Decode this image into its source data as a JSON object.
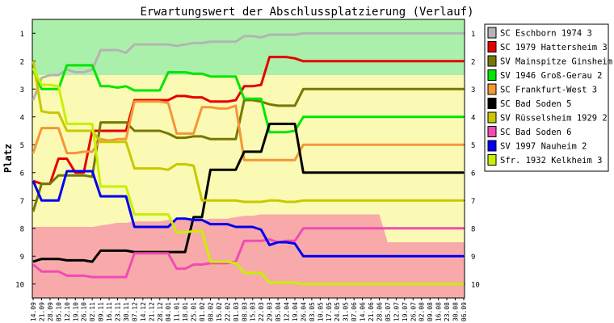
{
  "chart_data": {
    "type": "line",
    "title": "Erwartungswert der Abschlussplatzierung (Verlauf)",
    "ylabel": "Platz",
    "xlabel": "",
    "ylim": [
      0.5,
      10.5
    ],
    "y_inverted": true,
    "y_ticks": [
      1,
      2,
      3,
      4,
      5,
      6,
      7,
      8,
      9,
      10
    ],
    "grid": false,
    "legend_position": "right",
    "categories": [
      "14.09",
      "21.09",
      "28.09",
      "05.10",
      "12.10",
      "19.10",
      "26.10",
      "02.11",
      "09.11",
      "16.11",
      "23.11",
      "30.11",
      "07.12",
      "14.12",
      "21.12",
      "28.12",
      "04.01",
      "11.01",
      "18.01",
      "25.01",
      "01.02",
      "08.02",
      "15.02",
      "22.02",
      "01.03",
      "08.03",
      "15.03",
      "22.03",
      "29.03",
      "05.04",
      "12.04",
      "19.04",
      "26.04",
      "03.05",
      "10.05",
      "17.05",
      "24.05",
      "31.05",
      "07.06",
      "14.06",
      "21.06",
      "28.06",
      "05.07",
      "12.07",
      "19.07",
      "26.07",
      "02.08",
      "09.08",
      "16.08",
      "23.08",
      "30.08",
      "06.09"
    ],
    "zones": [
      {
        "name": "aufstieg",
        "color": "#aaf0aa",
        "top": [
          0.5,
          0.5,
          0.5,
          0.5,
          0.5,
          0.5,
          0.5,
          0.5,
          0.5,
          0.5,
          0.5,
          0.5,
          0.5,
          0.5,
          0.5,
          0.5,
          0.5,
          0.5,
          0.5,
          0.5,
          0.5,
          0.5,
          0.5,
          0.5,
          0.5,
          0.5,
          0.5,
          0.5,
          0.5,
          0.5,
          0.5,
          0.5,
          0.5,
          0.5,
          0.5,
          0.5,
          0.5,
          0.5,
          0.5,
          0.5,
          0.5,
          0.5,
          0.5,
          0.5,
          0.5,
          0.5,
          0.5,
          0.5,
          0.5,
          0.5,
          0.5,
          0.5
        ],
        "bottom": [
          2.5,
          2.5,
          2.5,
          2.5,
          2.5,
          2.5,
          2.5,
          2.5,
          2.5,
          2.5,
          2.5,
          2.5,
          2.5,
          2.5,
          2.5,
          2.5,
          2.5,
          2.5,
          2.5,
          2.5,
          2.5,
          2.5,
          2.5,
          2.5,
          2.5,
          2.5,
          2.5,
          2.5,
          2.5,
          2.5,
          2.5,
          2.5,
          2.5,
          2.5,
          2.5,
          2.5,
          2.5,
          2.5,
          2.5,
          2.5,
          2.5,
          2.5,
          2.5,
          2.5,
          2.5,
          2.5,
          2.5,
          2.5,
          2.5,
          2.5,
          2.5,
          2.5
        ]
      },
      {
        "name": "mitte",
        "color": "#fafab4",
        "top": [
          2.5,
          2.5,
          2.5,
          2.5,
          2.5,
          2.5,
          2.5,
          2.5,
          2.5,
          2.5,
          2.5,
          2.5,
          2.5,
          2.5,
          2.5,
          2.5,
          2.5,
          2.5,
          2.5,
          2.5,
          2.5,
          2.5,
          2.5,
          2.5,
          2.5,
          2.5,
          2.5,
          2.5,
          2.5,
          2.5,
          2.5,
          2.5,
          2.5,
          2.5,
          2.5,
          2.5,
          2.5,
          2.5,
          2.5,
          2.5,
          2.5,
          2.5,
          2.5,
          2.5,
          2.5,
          2.5,
          2.5,
          2.5,
          2.5,
          2.5,
          2.5,
          2.5
        ],
        "bottom": [
          7.95,
          7.95,
          7.95,
          7.95,
          7.95,
          7.95,
          7.95,
          7.95,
          7.9,
          7.85,
          7.8,
          7.8,
          7.75,
          7.75,
          7.75,
          7.75,
          7.7,
          7.7,
          7.7,
          7.7,
          7.7,
          7.65,
          7.65,
          7.65,
          7.6,
          7.55,
          7.55,
          7.5,
          7.5,
          7.5,
          7.5,
          7.5,
          7.5,
          7.5,
          7.5,
          7.5,
          7.5,
          7.5,
          7.5,
          7.5,
          7.5,
          7.5,
          8.5,
          8.5,
          8.5,
          8.5,
          8.5,
          8.5,
          8.5,
          8.5,
          8.5,
          8.5
        ]
      },
      {
        "name": "abstieg",
        "color": "#f8aaaa",
        "top": [
          7.95,
          7.95,
          7.95,
          7.95,
          7.95,
          7.95,
          7.95,
          7.95,
          7.9,
          7.85,
          7.8,
          7.8,
          7.75,
          7.75,
          7.75,
          7.75,
          7.7,
          7.7,
          7.7,
          7.7,
          7.7,
          7.65,
          7.65,
          7.65,
          7.6,
          7.55,
          7.55,
          7.5,
          7.5,
          7.5,
          7.5,
          7.5,
          7.5,
          7.5,
          7.5,
          7.5,
          7.5,
          7.5,
          7.5,
          7.5,
          7.5,
          7.5,
          8.5,
          8.5,
          8.5,
          8.5,
          8.5,
          8.5,
          8.5,
          8.5,
          8.5,
          8.5
        ],
        "bottom": [
          10.5,
          10.5,
          10.5,
          10.5,
          10.5,
          10.5,
          10.5,
          10.5,
          10.5,
          10.5,
          10.5,
          10.5,
          10.5,
          10.5,
          10.5,
          10.5,
          10.5,
          10.5,
          10.5,
          10.5,
          10.5,
          10.5,
          10.5,
          10.5,
          10.5,
          10.5,
          10.5,
          10.5,
          10.5,
          10.5,
          10.5,
          10.5,
          10.5,
          10.5,
          10.5,
          10.5,
          10.5,
          10.5,
          10.5,
          10.5,
          10.5,
          10.5,
          10.5,
          10.5,
          10.5,
          10.5,
          10.5,
          10.5,
          10.5,
          10.5,
          10.5,
          10.5
        ]
      }
    ],
    "series": [
      {
        "name": "SC Eschborn 1974 3",
        "color": "#b4b4b4",
        "values": [
          3.4,
          2.6,
          2.5,
          2.5,
          2.3,
          2.4,
          2.4,
          2.3,
          1.6,
          1.6,
          1.6,
          1.7,
          1.4,
          1.4,
          1.4,
          1.4,
          1.4,
          1.45,
          1.4,
          1.35,
          1.35,
          1.3,
          1.3,
          1.3,
          1.3,
          1.1,
          1.1,
          1.15,
          1.05,
          1.05,
          1.05,
          1.05,
          1.0,
          1.0,
          1.0,
          1.0,
          1.0,
          1.0,
          1.0,
          1.0,
          1.0,
          1.0,
          1.0,
          1.0,
          1.0,
          1.0,
          1.0,
          1.0,
          1.0,
          1.0,
          1.0,
          1.0
        ]
      },
      {
        "name": "SC 1979 Hattersheim 3",
        "color": "#e60000",
        "values": [
          6.3,
          6.4,
          6.4,
          5.5,
          5.5,
          6.0,
          6.0,
          4.5,
          4.5,
          4.5,
          4.5,
          4.5,
          3.4,
          3.4,
          3.4,
          3.4,
          3.4,
          3.25,
          3.25,
          3.3,
          3.3,
          3.45,
          3.45,
          3.45,
          3.4,
          2.9,
          2.9,
          2.85,
          1.85,
          1.85,
          1.85,
          1.9,
          2.0,
          2.0,
          2.0,
          2.0,
          2.0,
          2.0,
          2.0,
          2.0,
          2.0,
          2.0,
          2.0,
          2.0,
          2.0,
          2.0,
          2.0,
          2.0,
          2.0,
          2.0,
          2.0,
          2.0
        ]
      },
      {
        "name": "SV Mainspitze Ginsheim",
        "color": "#787800",
        "values": [
          7.4,
          6.4,
          6.4,
          6.1,
          6.1,
          6.1,
          6.1,
          6.15,
          4.2,
          4.2,
          4.2,
          4.2,
          4.5,
          4.5,
          4.5,
          4.5,
          4.6,
          4.75,
          4.75,
          4.7,
          4.7,
          4.8,
          4.8,
          4.8,
          4.8,
          3.4,
          3.4,
          3.45,
          3.55,
          3.6,
          3.6,
          3.6,
          3.0,
          3.0,
          3.0,
          3.0,
          3.0,
          3.0,
          3.0,
          3.0,
          3.0,
          3.0,
          3.0,
          3.0,
          3.0,
          3.0,
          3.0,
          3.0,
          3.0,
          3.0,
          3.0,
          3.0
        ]
      },
      {
        "name": "SV 1946 Groß-Gerau 2",
        "color": "#00e600",
        "values": [
          2.3,
          3.0,
          3.0,
          3.0,
          2.15,
          2.15,
          2.15,
          2.15,
          2.9,
          2.9,
          2.95,
          2.9,
          3.05,
          3.05,
          3.05,
          3.05,
          2.4,
          2.4,
          2.4,
          2.45,
          2.45,
          2.55,
          2.55,
          2.55,
          2.55,
          3.35,
          3.35,
          3.35,
          4.55,
          4.55,
          4.55,
          4.5,
          4.0,
          4.0,
          4.0,
          4.0,
          4.0,
          4.0,
          4.0,
          4.0,
          4.0,
          4.0,
          4.0,
          4.0,
          4.0,
          4.0,
          4.0,
          4.0,
          4.0,
          4.0,
          4.0,
          4.0
        ]
      },
      {
        "name": "SC Frankfurt-West 3",
        "color": "#f59637",
        "values": [
          5.3,
          4.4,
          4.4,
          4.4,
          5.3,
          5.3,
          5.25,
          5.25,
          4.8,
          4.85,
          4.8,
          4.8,
          3.45,
          3.45,
          3.45,
          3.45,
          3.5,
          4.6,
          4.6,
          4.6,
          3.65,
          3.65,
          3.7,
          3.7,
          3.6,
          5.55,
          5.55,
          5.55,
          5.55,
          5.55,
          5.55,
          5.55,
          5.0,
          5.0,
          5.0,
          5.0,
          5.0,
          5.0,
          5.0,
          5.0,
          5.0,
          5.0,
          5.0,
          5.0,
          5.0,
          5.0,
          5.0,
          5.0,
          5.0,
          5.0,
          5.0,
          5.0
        ]
      },
      {
        "name": "SC Bad Soden 5",
        "color": "#000000",
        "values": [
          9.2,
          9.1,
          9.1,
          9.1,
          9.15,
          9.15,
          9.15,
          9.2,
          8.8,
          8.8,
          8.8,
          8.8,
          8.85,
          8.85,
          8.85,
          8.85,
          8.85,
          8.85,
          8.85,
          7.6,
          7.6,
          5.9,
          5.9,
          5.9,
          5.9,
          5.25,
          5.25,
          5.25,
          4.25,
          4.25,
          4.25,
          4.25,
          6.0,
          6.0,
          6.0,
          6.0,
          6.0,
          6.0,
          6.0,
          6.0,
          6.0,
          6.0,
          6.0,
          6.0,
          6.0,
          6.0,
          6.0,
          6.0,
          6.0,
          6.0,
          6.0,
          6.0
        ]
      },
      {
        "name": "SV Rüsselsheim 1929 2",
        "color": "#c8c800",
        "values": [
          2.0,
          3.8,
          3.85,
          3.85,
          4.5,
          4.5,
          4.5,
          4.5,
          4.9,
          4.9,
          4.9,
          4.9,
          5.85,
          5.85,
          5.85,
          5.85,
          5.9,
          5.7,
          5.7,
          5.75,
          7.0,
          7.0,
          7.0,
          7.0,
          7.0,
          7.05,
          7.05,
          7.05,
          7.0,
          7.0,
          7.05,
          7.05,
          7.0,
          7.0,
          7.0,
          7.0,
          7.0,
          7.0,
          7.0,
          7.0,
          7.0,
          7.0,
          7.0,
          7.0,
          7.0,
          7.0,
          7.0,
          7.0,
          7.0,
          7.0,
          7.0,
          7.0
        ]
      },
      {
        "name": "SC Bad Soden 6",
        "color": "#f04bb4",
        "values": [
          9.3,
          9.55,
          9.55,
          9.55,
          9.7,
          9.7,
          9.7,
          9.75,
          9.75,
          9.75,
          9.75,
          9.75,
          8.9,
          8.9,
          8.9,
          8.9,
          8.9,
          9.45,
          9.45,
          9.3,
          9.3,
          9.25,
          9.25,
          9.25,
          9.2,
          8.45,
          8.45,
          8.45,
          8.4,
          8.5,
          8.45,
          8.45,
          8.0,
          8.0,
          8.0,
          8.0,
          8.0,
          8.0,
          8.0,
          8.0,
          8.0,
          8.0,
          8.0,
          8.0,
          8.0,
          8.0,
          8.0,
          8.0,
          8.0,
          8.0,
          8.0,
          8.0
        ]
      },
      {
        "name": "SV 1997 Nauheim 2",
        "color": "#0000f0",
        "values": [
          6.3,
          7.0,
          7.0,
          7.0,
          5.95,
          5.95,
          5.95,
          5.95,
          6.85,
          6.85,
          6.85,
          6.85,
          7.95,
          7.95,
          7.95,
          7.95,
          7.95,
          7.65,
          7.65,
          7.7,
          7.7,
          7.85,
          7.85,
          7.85,
          7.95,
          7.95,
          7.95,
          8.05,
          8.6,
          8.5,
          8.5,
          8.55,
          9.0,
          9.0,
          9.0,
          9.0,
          9.0,
          9.0,
          9.0,
          9.0,
          9.0,
          9.0,
          9.0,
          9.0,
          9.0,
          9.0,
          9.0,
          9.0,
          9.0,
          9.0,
          9.0,
          9.0
        ]
      },
      {
        "name": "Sfr. 1932 Kelkheim 3",
        "color": "#c8f000",
        "values": [
          2.25,
          2.85,
          2.85,
          2.9,
          4.25,
          4.25,
          4.25,
          4.25,
          6.5,
          6.5,
          6.5,
          6.5,
          7.5,
          7.5,
          7.5,
          7.5,
          7.5,
          8.15,
          8.15,
          8.1,
          8.1,
          9.2,
          9.2,
          9.2,
          9.25,
          9.6,
          9.6,
          9.6,
          9.95,
          9.95,
          9.95,
          9.95,
          10.0,
          10.0,
          10.0,
          10.0,
          10.0,
          10.0,
          10.0,
          10.0,
          10.0,
          10.0,
          10.0,
          10.0,
          10.0,
          10.0,
          10.0,
          10.0,
          10.0,
          10.0,
          10.0,
          10.0
        ]
      }
    ]
  }
}
